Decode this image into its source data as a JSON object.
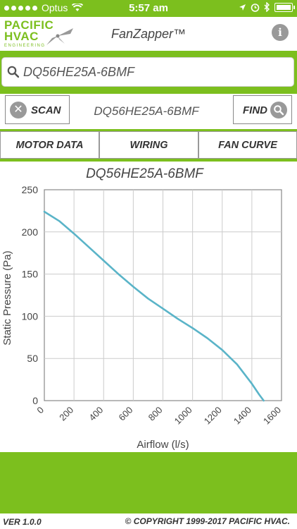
{
  "status_bar": {
    "carrier": "Optus",
    "time": "5:57 am",
    "wifi_icon": "wifi-icon",
    "right_icons": [
      "location-arrow-icon",
      "alarm-icon",
      "bluetooth-icon",
      "battery-icon"
    ]
  },
  "header": {
    "logo_line1": "PACIFIC",
    "logo_line2": "HVAC",
    "logo_line3": "ENGINEERING",
    "app_title": "FanZapper™",
    "info_label": "i"
  },
  "search": {
    "value": "DQ56HE25A-6BMF"
  },
  "actions": {
    "scan_label": "SCAN",
    "model_label": "DQ56HE25A-6BMF",
    "find_label": "FIND"
  },
  "tabs": [
    {
      "label": "MOTOR DATA"
    },
    {
      "label": "WIRING"
    },
    {
      "label": "FAN CURVE"
    }
  ],
  "colors": {
    "brand_green": "#7cbf1e",
    "curve": "#5ab4c8",
    "grid": "#cccccc"
  },
  "chart_data": {
    "type": "line",
    "title": "DQ56HE25A-6BMF",
    "xlabel": "Airflow (l/s)",
    "ylabel": "Static Pressure (Pa)",
    "xlim": [
      0,
      1600
    ],
    "ylim": [
      0,
      250
    ],
    "x_ticks": [
      "0",
      "200",
      "400",
      "600",
      "800",
      "1000",
      "1200",
      "1400",
      "1600"
    ],
    "y_ticks": [
      "0",
      "50",
      "100",
      "150",
      "200",
      "250"
    ],
    "grid": true,
    "series": [
      {
        "x": [
          0,
          100,
          200,
          300,
          400,
          500,
          600,
          700,
          800,
          900,
          1000,
          1100,
          1200,
          1300,
          1400,
          1450,
          1480
        ],
        "values": [
          224,
          213,
          198,
          182,
          166,
          150,
          135,
          121,
          109,
          97,
          86,
          74,
          60,
          43,
          20,
          7,
          0
        ]
      }
    ]
  },
  "footer": {
    "version": "VER 1.0.0",
    "copyright": "© COPYRIGHT 1999-2017 PACIFIC HVAC."
  }
}
